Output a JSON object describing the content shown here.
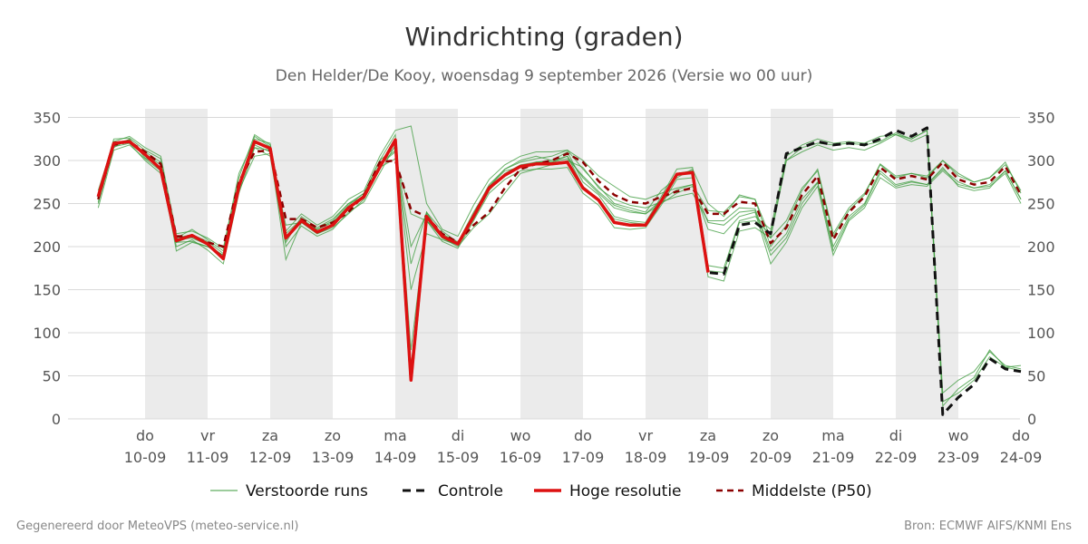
{
  "chart_data": {
    "type": "line",
    "title": "Windrichting (graden)",
    "subtitle": "Den Helder/De Kooy, woensdag  9 september 2026 (Versie wo 00 uur)",
    "ylim": [
      0,
      360
    ],
    "yticks": [
      0,
      50,
      100,
      150,
      200,
      250,
      300,
      350
    ],
    "xlim": [
      -0.75,
      14.0
    ],
    "x_ticks": [
      {
        "x": 0,
        "day": "do",
        "date": "10-09"
      },
      {
        "x": 1,
        "day": "vr",
        "date": "11-09"
      },
      {
        "x": 2,
        "day": "za",
        "date": "12-09"
      },
      {
        "x": 3,
        "day": "zo",
        "date": "13-09"
      },
      {
        "x": 4,
        "day": "ma",
        "date": "14-09"
      },
      {
        "x": 5,
        "day": "di",
        "date": "15-09"
      },
      {
        "x": 6,
        "day": "wo",
        "date": "16-09"
      },
      {
        "x": 7,
        "day": "do",
        "date": "17-09"
      },
      {
        "x": 8,
        "day": "vr",
        "date": "18-09"
      },
      {
        "x": 9,
        "day": "za",
        "date": "19-09"
      },
      {
        "x": 10,
        "day": "zo",
        "date": "20-09"
      },
      {
        "x": 11,
        "day": "ma",
        "date": "21-09"
      },
      {
        "x": 12,
        "day": "di",
        "date": "22-09"
      },
      {
        "x": 13,
        "day": "wo",
        "date": "23-09"
      },
      {
        "x": 14,
        "day": "do",
        "date": "24-09"
      }
    ],
    "shaded_bands": [
      [
        0,
        1
      ],
      [
        2,
        3
      ],
      [
        4,
        5
      ],
      [
        6,
        7
      ],
      [
        8,
        9
      ],
      [
        10,
        11
      ],
      [
        12,
        13
      ]
    ],
    "grid": true,
    "legend_position": "bottom",
    "colors": {
      "ensemble": "#3a9a3a",
      "control": "#111111",
      "hires": "#dd1111",
      "median": "#8b0000",
      "band": "#ebebeb",
      "grid": "#d9d9d9"
    },
    "series": [
      {
        "name": "Hoge resolutie",
        "style": "solid",
        "x": [
          -0.75,
          -0.5,
          -0.25,
          0,
          0.25,
          0.5,
          0.75,
          1,
          1.25,
          1.5,
          1.75,
          2,
          2.25,
          2.5,
          2.75,
          3,
          3.25,
          3.5,
          3.75,
          4,
          4.25,
          4.5,
          4.75,
          5,
          5.25,
          5.5,
          5.75,
          6,
          6.25,
          6.5,
          6.75,
          7,
          7.25,
          7.5,
          7.75,
          8,
          8.25,
          8.5,
          8.75,
          9
        ],
        "y": [
          258,
          320,
          322,
          307,
          290,
          207,
          213,
          203,
          186,
          270,
          322,
          314,
          210,
          230,
          217,
          225,
          245,
          258,
          292,
          324,
          45,
          235,
          212,
          203,
          235,
          268,
          283,
          293,
          296,
          296,
          298,
          268,
          254,
          228,
          225,
          225,
          253,
          284,
          286,
          170
        ]
      },
      {
        "name": "Controle",
        "style": "dashed",
        "x": [
          -0.75,
          -0.5,
          -0.25,
          0,
          0.25,
          0.5,
          0.75,
          1,
          1.25,
          1.5,
          1.75,
          2,
          2.25,
          2.5,
          2.75,
          3,
          3.25,
          3.5,
          3.75,
          4,
          4.25,
          4.5,
          4.75,
          5,
          5.25,
          5.5,
          5.75,
          6,
          6.25,
          6.5,
          6.75,
          7,
          7.25,
          7.5,
          7.75,
          8,
          8.25,
          8.5,
          8.75,
          9,
          9.25,
          9.5,
          9.75,
          10,
          10.25,
          10.5,
          10.75,
          11,
          11.25,
          11.5,
          11.75,
          12,
          12.25,
          12.5,
          12.75,
          13,
          13.25,
          13.5,
          13.75,
          14
        ],
        "y": [
          258,
          320,
          322,
          307,
          290,
          207,
          213,
          203,
          186,
          270,
          322,
          314,
          210,
          230,
          217,
          225,
          245,
          258,
          292,
          324,
          45,
          235,
          212,
          203,
          235,
          268,
          283,
          293,
          296,
          296,
          298,
          268,
          254,
          228,
          225,
          225,
          253,
          284,
          286,
          170,
          168,
          225,
          228,
          215,
          308,
          315,
          322,
          318,
          320,
          318,
          325,
          335,
          328,
          338,
          5,
          25,
          40,
          70,
          58,
          55
        ]
      },
      {
        "name": "Middelste (P50)",
        "style": "dashed",
        "x": [
          -0.75,
          -0.5,
          -0.25,
          0,
          0.25,
          0.5,
          0.75,
          1,
          1.25,
          1.5,
          1.75,
          2,
          2.25,
          2.5,
          2.75,
          3,
          3.25,
          3.5,
          3.75,
          4,
          4.25,
          4.5,
          4.75,
          5,
          5.25,
          5.5,
          5.75,
          6,
          6.25,
          6.5,
          6.75,
          7,
          7.25,
          7.5,
          7.75,
          8,
          8.25,
          8.5,
          8.75,
          9,
          9.25,
          9.5,
          9.75,
          10,
          10.25,
          10.5,
          10.75,
          11,
          11.25,
          11.5,
          11.75,
          12,
          12.25,
          12.5,
          12.75,
          13,
          13.25,
          13.5,
          13.75,
          14
        ],
        "y": [
          255,
          318,
          322,
          310,
          296,
          212,
          212,
          205,
          200,
          275,
          310,
          312,
          232,
          232,
          222,
          228,
          240,
          260,
          298,
          300,
          243,
          235,
          215,
          205,
          225,
          240,
          268,
          290,
          296,
          300,
          308,
          298,
          276,
          260,
          252,
          250,
          258,
          264,
          268,
          238,
          238,
          252,
          250,
          204,
          222,
          260,
          282,
          208,
          240,
          258,
          292,
          278,
          282,
          278,
          298,
          278,
          272,
          275,
          293,
          260
        ]
      },
      {
        "name": "Verstoorde runs",
        "style": "thin",
        "x": [
          -0.75,
          -0.5,
          -0.25,
          0,
          0.25,
          0.5,
          0.75,
          1,
          1.25,
          1.5,
          1.75,
          2,
          2.25,
          2.5,
          2.75,
          3,
          3.25,
          3.5,
          3.75,
          4,
          4.25,
          4.5,
          4.75,
          5,
          5.25,
          5.5,
          5.75,
          6,
          6.25,
          6.5,
          6.75,
          7,
          7.25,
          7.5,
          7.75,
          8,
          8.25,
          8.5,
          8.75,
          9,
          9.25,
          9.5,
          9.75,
          10,
          10.25,
          10.5,
          10.75,
          11,
          11.25,
          11.5,
          11.75,
          12,
          12.25,
          12.5,
          12.75,
          13,
          13.25,
          13.5,
          13.75,
          14
        ],
        "members": [
          [
            262,
            325,
            326,
            312,
            302,
            210,
            220,
            208,
            195,
            280,
            330,
            318,
            205,
            235,
            222,
            232,
            250,
            262,
            300,
            330,
            60,
            240,
            218,
            205,
            240,
            270,
            290,
            300,
            305,
            300,
            310,
            275,
            260,
            235,
            230,
            228,
            258,
            290,
            292,
            178,
            175,
            230,
            235,
            220,
            305,
            318,
            325,
            320,
            322,
            320,
            328,
            330,
            325,
            335,
            30,
            45,
            55,
            78,
            62,
            58
          ],
          [
            250,
            316,
            320,
            300,
            285,
            200,
            208,
            196,
            180,
            262,
            315,
            305,
            200,
            224,
            212,
            220,
            240,
            252,
            285,
            318,
            52,
            230,
            206,
            198,
            230,
            262,
            278,
            288,
            290,
            290,
            292,
            262,
            248,
            222,
            220,
            222,
            248,
            278,
            280,
            165,
            160,
            218,
            222,
            210,
            300,
            310,
            318,
            312,
            315,
            312,
            320,
            330,
            322,
            330,
            15,
            35,
            48,
            80,
            60,
            62
          ],
          [
            265,
            322,
            328,
            315,
            305,
            215,
            218,
            210,
            198,
            285,
            325,
            320,
            218,
            238,
            225,
            235,
            255,
            265,
            305,
            335,
            340,
            250,
            220,
            212,
            248,
            278,
            295,
            305,
            310,
            310,
            312,
            290,
            270,
            250,
            245,
            240,
            265,
            280,
            290,
            250,
            235,
            260,
            255,
            200,
            225,
            265,
            290,
            215,
            245,
            262,
            295,
            280,
            285,
            280,
            300,
            285,
            275,
            280,
            295,
            265
          ],
          [
            245,
            312,
            318,
            302,
            288,
            205,
            206,
            200,
            188,
            265,
            305,
            308,
            225,
            228,
            215,
            222,
            238,
            255,
            292,
            302,
            238,
            230,
            210,
            200,
            222,
            238,
            262,
            285,
            290,
            295,
            300,
            292,
            268,
            255,
            248,
            245,
            252,
            258,
            262,
            230,
            230,
            245,
            244,
            195,
            215,
            255,
            275,
            200,
            235,
            250,
            288,
            272,
            276,
            272,
            292,
            270,
            265,
            268,
            288,
            255
          ],
          [
            258,
            320,
            324,
            308,
            295,
            195,
            205,
            200,
            190,
            270,
            318,
            310,
            185,
            228,
            220,
            228,
            248,
            262,
            300,
            315,
            150,
            215,
            208,
            202,
            238,
            272,
            290,
            298,
            302,
            305,
            312,
            300,
            282,
            270,
            258,
            255,
            262,
            268,
            272,
            242,
            240,
            258,
            255,
            210,
            230,
            268,
            288,
            212,
            242,
            260,
            296,
            282,
            285,
            282,
            300,
            282,
            275,
            280,
            298,
            262
          ],
          [
            255,
            318,
            322,
            305,
            290,
            210,
            214,
            206,
            192,
            272,
            315,
            312,
            215,
            232,
            218,
            226,
            246,
            260,
            295,
            310,
            180,
            240,
            210,
            202,
            232,
            265,
            285,
            295,
            298,
            298,
            305,
            280,
            262,
            245,
            240,
            238,
            250,
            262,
            270,
            220,
            215,
            235,
            240,
            180,
            205,
            245,
            270,
            190,
            230,
            245,
            280,
            268,
            272,
            270,
            288,
            272,
            268,
            270,
            285,
            250
          ],
          [
            260,
            322,
            320,
            310,
            298,
            205,
            212,
            203,
            188,
            268,
            320,
            315,
            208,
            232,
            220,
            230,
            250,
            258,
            295,
            320,
            80,
            230,
            215,
            205,
            235,
            270,
            288,
            292,
            298,
            300,
            305,
            270,
            255,
            232,
            228,
            226,
            255,
            285,
            288,
            172,
            170,
            228,
            230,
            215,
            300,
            315,
            320,
            318,
            320,
            318,
            322,
            332,
            325,
            335,
            20,
            30,
            45,
            72,
            60,
            56
          ],
          [
            252,
            315,
            325,
            303,
            292,
            208,
            210,
            202,
            190,
            272,
            328,
            316,
            212,
            228,
            215,
            224,
            244,
            258,
            296,
            312,
            200,
            238,
            212,
            203,
            234,
            266,
            284,
            292,
            298,
            298,
            302,
            282,
            264,
            248,
            242,
            238,
            254,
            266,
            272,
            228,
            225,
            240,
            242,
            190,
            210,
            250,
            274,
            195,
            232,
            248,
            285,
            270,
            275,
            272,
            290,
            275,
            268,
            272,
            288,
            255
          ]
        ]
      }
    ]
  },
  "legend": {
    "ensemble_label": "Verstoorde runs",
    "control_label": "Controle",
    "hires_label": "Hoge resolutie",
    "median_label": "Middelste (P50)"
  },
  "footer": {
    "left": "Gegenereerd door MeteoVPS (meteo-service.nl)",
    "right": "Bron: ECMWF AIFS/KNMI Ens"
  }
}
